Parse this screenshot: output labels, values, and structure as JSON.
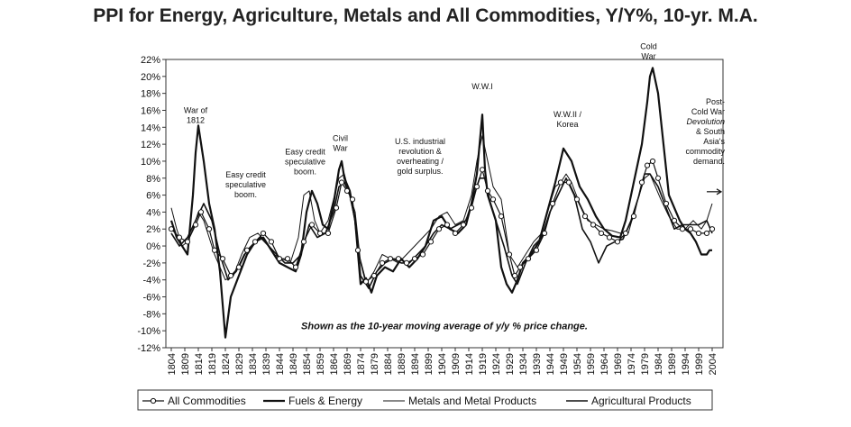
{
  "chart_data": {
    "type": "line",
    "title": "PPI for Energy, Agriculture, Metals and All Commodities, Y/Y%, 10-yr. M.A.",
    "xlabel": "",
    "ylabel": "",
    "xlim": [
      1802,
      2008
    ],
    "ylim": [
      -12,
      22
    ],
    "y_ticks": [
      -12,
      -10,
      -8,
      -6,
      -4,
      -2,
      0,
      2,
      4,
      6,
      8,
      10,
      12,
      14,
      16,
      18,
      20,
      22
    ],
    "y_tick_labels": [
      "-12%",
      "-10%",
      "-8%",
      "-6%",
      "-4%",
      "-2%",
      "0%",
      "2%",
      "4%",
      "6%",
      "8%",
      "10%",
      "12%",
      "14%",
      "16%",
      "18%",
      "20%",
      "22%"
    ],
    "x_ticks": [
      1804,
      1809,
      1814,
      1819,
      1824,
      1829,
      1834,
      1839,
      1844,
      1849,
      1854,
      1859,
      1864,
      1869,
      1874,
      1879,
      1884,
      1889,
      1894,
      1899,
      1904,
      1909,
      1914,
      1919,
      1924,
      1929,
      1934,
      1939,
      1944,
      1949,
      1954,
      1959,
      1964,
      1969,
      1974,
      1979,
      1984,
      1989,
      1994,
      1999,
      2004
    ],
    "x_tick_labels": [
      "1804",
      "1809",
      "1814",
      "1819",
      "1824",
      "1829",
      "1834",
      "1839",
      "1844",
      "1849",
      "1854",
      "1859",
      "1864",
      "1869",
      "1874",
      "1879",
      "1884",
      "1889",
      "1894",
      "1899",
      "1904",
      "1909",
      "1914",
      "1919",
      "1924",
      "1929",
      "1934",
      "1939",
      "1944",
      "1949",
      "1954",
      "1959",
      "1964",
      "1969",
      "1974",
      "1979",
      "1984",
      "1989",
      "1994",
      "1999",
      "2004"
    ],
    "legend_position": "bottom",
    "series": [
      {
        "name": "All Commodities",
        "style": "circle-markers",
        "x": [
          1804,
          1807,
          1810,
          1813,
          1815,
          1818,
          1820,
          1823,
          1826,
          1829,
          1832,
          1835,
          1838,
          1841,
          1844,
          1847,
          1850,
          1853,
          1856,
          1859,
          1862,
          1865,
          1867,
          1869,
          1871,
          1873,
          1876,
          1879,
          1882,
          1885,
          1888,
          1891,
          1894,
          1897,
          1900,
          1903,
          1906,
          1909,
          1912,
          1915,
          1917,
          1919,
          1921,
          1923,
          1926,
          1929,
          1931,
          1933,
          1936,
          1939,
          1942,
          1945,
          1948,
          1951,
          1954,
          1957,
          1960,
          1963,
          1966,
          1969,
          1972,
          1975,
          1978,
          1980,
          1982,
          1984,
          1987,
          1990,
          1993,
          1996,
          1999,
          2002,
          2004
        ],
        "y": [
          2,
          1,
          0.5,
          2.5,
          4,
          2,
          -0.5,
          -1.5,
          -3.5,
          -2.5,
          -0.5,
          0.5,
          1.5,
          0.5,
          -1.5,
          -1.5,
          -2.5,
          0.5,
          2.5,
          1.5,
          1.5,
          4.5,
          7.5,
          6.5,
          5.5,
          -0.5,
          -4.2,
          -3.5,
          -2,
          -1.5,
          -1.5,
          -2,
          -1.5,
          -1,
          0.5,
          2,
          2.5,
          1.5,
          2.5,
          4.5,
          7,
          9,
          6.5,
          5.5,
          3.5,
          -1,
          -3.5,
          -2.5,
          -1.5,
          -0.5,
          1.5,
          5,
          7.5,
          7.5,
          5.5,
          3.5,
          2.5,
          1.5,
          1,
          0.5,
          1.5,
          3.5,
          7.5,
          9.5,
          10,
          8,
          5,
          3,
          2,
          2,
          1.5,
          1.5,
          2
        ]
      },
      {
        "name": "Fuels & Energy",
        "style": "thick",
        "x": [
          1804,
          1806,
          1808,
          1810,
          1812,
          1813,
          1814,
          1816,
          1818,
          1820,
          1822,
          1824,
          1826,
          1829,
          1832,
          1835,
          1838,
          1841,
          1844,
          1847,
          1850,
          1852,
          1854,
          1856,
          1858,
          1860,
          1862,
          1864,
          1866,
          1867,
          1868,
          1870,
          1872,
          1874,
          1876,
          1878,
          1880,
          1883,
          1886,
          1889,
          1892,
          1895,
          1898,
          1901,
          1904,
          1907,
          1910,
          1913,
          1915,
          1917,
          1918,
          1919,
          1920,
          1921,
          1922,
          1924,
          1926,
          1928,
          1930,
          1932,
          1934,
          1937,
          1940,
          1943,
          1946,
          1949,
          1952,
          1955,
          1958,
          1961,
          1964,
          1967,
          1970,
          1972,
          1974,
          1976,
          1978,
          1979,
          1980,
          1981,
          1982,
          1984,
          1986,
          1988,
          1990,
          1992,
          1994,
          1996,
          1998,
          2000,
          2002,
          2003,
          2004
        ],
        "y": [
          3,
          1,
          0,
          -1,
          6,
          11,
          14.2,
          10,
          5,
          2,
          -3,
          -10.8,
          -6,
          -3.5,
          -1,
          0.5,
          1,
          -0.5,
          -2,
          -2.5,
          -3,
          -1,
          4,
          6.5,
          5,
          2.5,
          2,
          5,
          9,
          10,
          8,
          6.5,
          3,
          -4.5,
          -3.8,
          -5.5,
          -3.5,
          -2.5,
          -3,
          -1.5,
          -2.5,
          -1.5,
          0,
          3,
          3.5,
          2,
          1.5,
          2.5,
          5,
          8.5,
          12,
          15.5,
          9,
          6,
          5,
          3,
          -2.5,
          -4.5,
          -5.5,
          -4,
          -2,
          -1,
          0.5,
          4,
          7.5,
          11.5,
          10,
          7,
          5.5,
          3.5,
          2,
          1.2,
          1,
          3,
          6,
          9,
          12,
          14.5,
          17,
          20,
          21,
          18,
          12,
          6,
          4.5,
          3,
          2,
          1.5,
          0.5,
          -1,
          -1,
          -0.5,
          -0.5
        ]
      },
      {
        "name": "Metals and Metal Products",
        "style": "thin",
        "x": [
          1804,
          1806,
          1808,
          1810,
          1812,
          1814,
          1816,
          1818,
          1820,
          1822,
          1824,
          1827,
          1830,
          1833,
          1836,
          1839,
          1842,
          1845,
          1848,
          1851,
          1853,
          1855,
          1857,
          1859,
          1862,
          1864,
          1866,
          1868,
          1870,
          1872,
          1874,
          1876,
          1879,
          1882,
          1885,
          1888,
          1891,
          1894,
          1897,
          1900,
          1903,
          1906,
          1909,
          1912,
          1915,
          1917,
          1919,
          1921,
          1923,
          1926,
          1929,
          1932,
          1935,
          1938,
          1941,
          1944,
          1946,
          1948,
          1950,
          1952,
          1955,
          1958,
          1961,
          1964,
          1967,
          1970,
          1973,
          1976,
          1979,
          1981,
          1983,
          1985,
          1988,
          1991,
          1994,
          1997,
          2000,
          2002,
          2004
        ],
        "y": [
          4.5,
          2,
          0,
          0.5,
          2,
          4,
          3,
          1,
          -1,
          -2.5,
          -4,
          -3.5,
          -1,
          1,
          1.5,
          0.5,
          -1,
          -1.5,
          -2,
          1,
          6,
          6.5,
          3,
          1.5,
          3,
          5.5,
          8,
          8.5,
          6,
          4,
          -2,
          -4.5,
          -3,
          -1,
          -1.5,
          -2,
          -1,
          0,
          1,
          2,
          3.5,
          4,
          2.5,
          3,
          6,
          10,
          13,
          10,
          7,
          5.5,
          -1,
          -2.5,
          -1,
          0.5,
          1.5,
          5,
          7,
          7.5,
          8.5,
          7.5,
          5,
          3,
          2.5,
          2,
          1.8,
          1.5,
          1.5,
          5,
          8,
          8.5,
          7,
          5.5,
          3.5,
          2,
          2,
          3,
          2,
          3,
          5
        ]
      },
      {
        "name": "Agricultural Products",
        "style": "medium",
        "x": [
          1804,
          1807,
          1810,
          1813,
          1816,
          1819,
          1822,
          1825,
          1828,
          1831,
          1834,
          1837,
          1840,
          1843,
          1846,
          1849,
          1852,
          1855,
          1858,
          1861,
          1864,
          1866,
          1868,
          1870,
          1872,
          1874,
          1877,
          1880,
          1883,
          1886,
          1889,
          1892,
          1895,
          1898,
          1901,
          1904,
          1907,
          1910,
          1913,
          1916,
          1918,
          1920,
          1922,
          1924,
          1927,
          1930,
          1932,
          1935,
          1938,
          1941,
          1944,
          1947,
          1950,
          1953,
          1956,
          1959,
          1962,
          1965,
          1968,
          1971,
          1974,
          1977,
          1979,
          1981,
          1984,
          1987,
          1990,
          1993,
          1996,
          1999,
          2002,
          2004
        ],
        "y": [
          1.5,
          0,
          1,
          3,
          5,
          3,
          -1,
          -4,
          -3,
          -1,
          0,
          1,
          0,
          -1,
          -2,
          -2,
          -1,
          2.5,
          1,
          1.5,
          4,
          7,
          7.5,
          6,
          3,
          -3.5,
          -5,
          -3,
          -2,
          -1.5,
          -2,
          -2,
          -1,
          0,
          1.5,
          2.5,
          2,
          2.5,
          3,
          6,
          8,
          8,
          5,
          3,
          0,
          -3.5,
          -4.5,
          -2,
          0,
          1,
          4,
          6,
          8,
          6,
          2,
          0.5,
          -2,
          0,
          0.5,
          0.8,
          3,
          6,
          8.5,
          8.5,
          7,
          4.5,
          2,
          2.5,
          2.5,
          2.5,
          3,
          1.5
        ]
      }
    ],
    "annotations": [
      {
        "text": "War of\n1812",
        "x": 1813,
        "y": 15.7
      },
      {
        "text": "Easy credit\nspeculative\nboom.",
        "x": 1831.5,
        "y": 8.1
      },
      {
        "text": "Easy credit\nspeculative\nboom.",
        "x": 1853.5,
        "y": 10.8
      },
      {
        "text": "Civil\nWar",
        "x": 1866.5,
        "y": 12.4
      },
      {
        "text": "U.S. industrial\nrevolution &\noverheating /\ngold surplus.",
        "x": 1896,
        "y": 12
      },
      {
        "text": "W.W.I",
        "x": 1919,
        "y": 18.5
      },
      {
        "text": "W.W.II /\nKorea",
        "x": 1950.5,
        "y": 15.2
      },
      {
        "text": "Cold\nWar",
        "x": 1980.5,
        "y": 23.2
      },
      {
        "text": "Post-\nCold War\nDevolution\n& South\nAsia's\ncommodity\ndemand.",
        "x": 2003,
        "y": 16.7
      },
      {
        "text": "Shown as the 10-year moving average of y/y % price change.",
        "x": 1905,
        "y": -9.8
      }
    ]
  }
}
